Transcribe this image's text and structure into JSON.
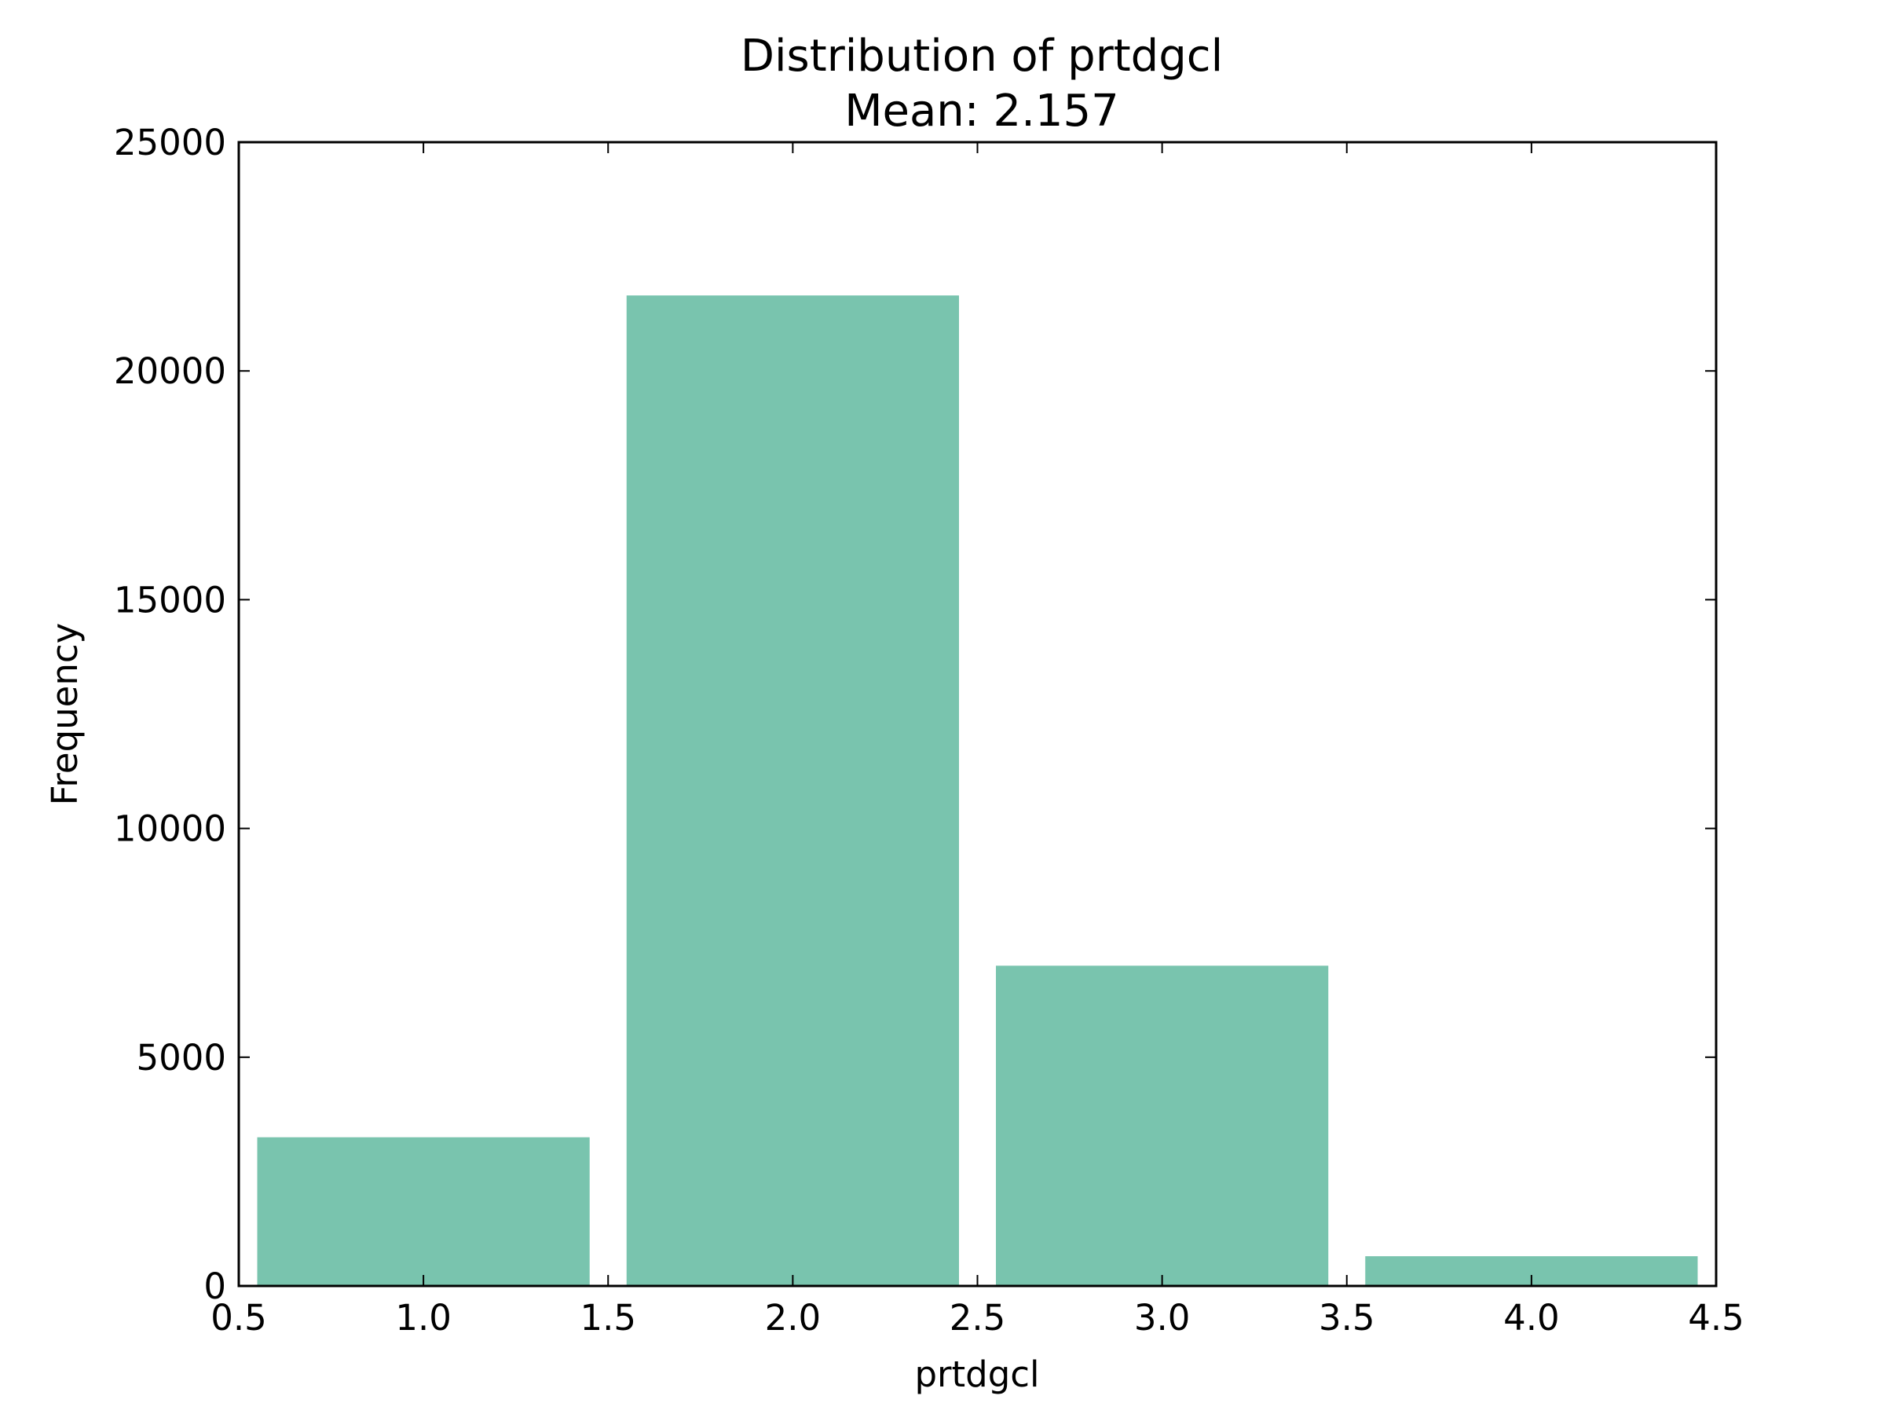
{
  "chart_data": {
    "type": "bar",
    "title": "Distribution of prtdgcl",
    "subtitle": "Mean: 2.157",
    "xlabel": "prtdgcl",
    "ylabel": "Frequency",
    "xlim": [
      0.5,
      4.5
    ],
    "ylim": [
      0,
      25000
    ],
    "x_ticks": [
      "0.5",
      "1.0",
      "1.5",
      "2.0",
      "2.5",
      "3.0",
      "3.5",
      "4.0",
      "4.5"
    ],
    "y_ticks": [
      "0",
      "5000",
      "10000",
      "15000",
      "20000",
      "25000"
    ],
    "bars": [
      {
        "x_start": 0.55,
        "x_end": 1.45,
        "value": 3250
      },
      {
        "x_start": 1.55,
        "x_end": 2.45,
        "value": 21650
      },
      {
        "x_start": 2.55,
        "x_end": 3.45,
        "value": 7000
      },
      {
        "x_start": 3.55,
        "x_end": 4.45,
        "value": 650
      }
    ],
    "bar_color": "#79c4ae",
    "grid": false,
    "legend": "none"
  }
}
